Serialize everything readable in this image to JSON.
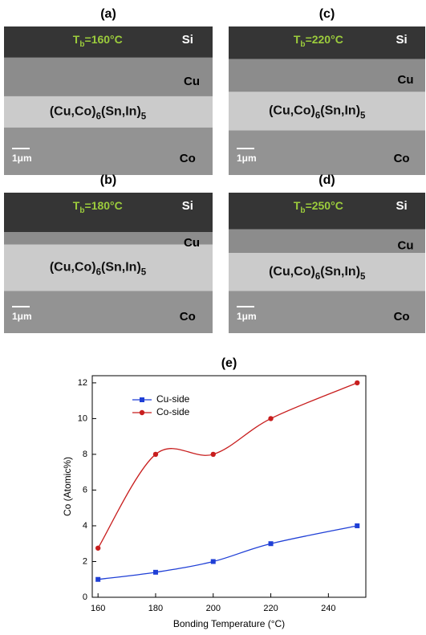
{
  "panels": [
    {
      "label": "(a)",
      "temperature": [
        "T",
        "b",
        "=160°C"
      ],
      "si": "Si",
      "cu": "Cu",
      "phase": [
        "(Cu,Co)",
        "6",
        "(Sn,In)",
        "5"
      ],
      "scale": "1μm",
      "co": "Co"
    },
    {
      "label": "(c)",
      "temperature": [
        "T",
        "b",
        "=220°C"
      ],
      "si": "Si",
      "cu": "Cu",
      "phase": [
        "(Cu,Co)",
        "6",
        "(Sn,In)",
        "5"
      ],
      "scale": "1μm",
      "co": "Co"
    },
    {
      "label": "(b)",
      "temperature": [
        "T",
        "b",
        "=180°C"
      ],
      "si": "Si",
      "cu": "Cu",
      "phase": [
        "(Cu,Co)",
        "6",
        "(Sn,In)",
        "5"
      ],
      "scale": "1μm",
      "co": "Co"
    },
    {
      "label": "(d)",
      "temperature": [
        "T",
        "b",
        "=250°C"
      ],
      "si": "Si",
      "cu": "Cu",
      "phase": [
        "(Cu,Co)",
        "6",
        "(Sn,In)",
        "5"
      ],
      "scale": "1μm",
      "co": "Co"
    }
  ],
  "chart_data": {
    "type": "line",
    "title": "(e)",
    "x_label": "Bonding Temperature (°C)",
    "y_label": "Co (Atomic%)",
    "x": [
      160,
      180,
      200,
      220,
      250
    ],
    "series": [
      {
        "name": "Cu-side",
        "color": "#1f3fd6",
        "marker": "square",
        "values": [
          1,
          1.4,
          2,
          3,
          4
        ]
      },
      {
        "name": "Co-side",
        "color": "#c81e1e",
        "marker": "circle",
        "values": [
          2.75,
          8,
          8,
          10,
          12
        ]
      }
    ],
    "xlim": [
      158,
      253
    ],
    "xticks": [
      160,
      180,
      200,
      220,
      240
    ],
    "ylim": [
      0,
      12.4
    ],
    "yticks": [
      0,
      2,
      4,
      6,
      8,
      10,
      12
    ],
    "legend": "upper left",
    "smooth": true
  }
}
